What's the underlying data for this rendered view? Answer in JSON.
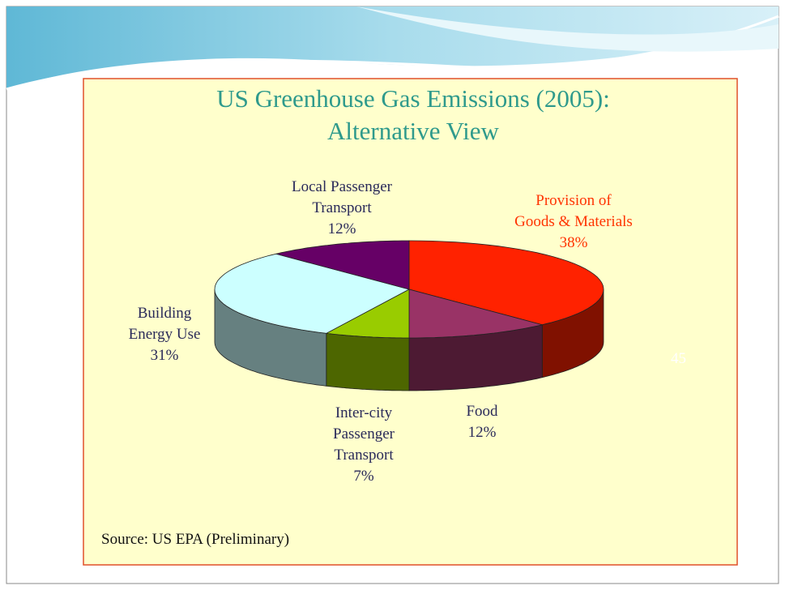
{
  "chart_data": {
    "type": "pie",
    "title": "US Greenhouse Gas Emissions (2005):\nAlternative View",
    "categories": [
      "Provision of\nGoods & Materials",
      "Food",
      "Inter-city\nPassenger\nTransport",
      "Building\nEnergy Use",
      "Local Passenger\nTransport"
    ],
    "values": [
      38,
      12,
      7,
      31,
      12
    ],
    "value_labels": [
      "38%",
      "12%",
      "7%",
      "31%",
      "12%"
    ],
    "colors": [
      "#ff2200",
      "#993366",
      "#99cc00",
      "#ccffff",
      "#660066"
    ],
    "source": "Source: US EPA (Preliminary)"
  },
  "slide_number": "45"
}
